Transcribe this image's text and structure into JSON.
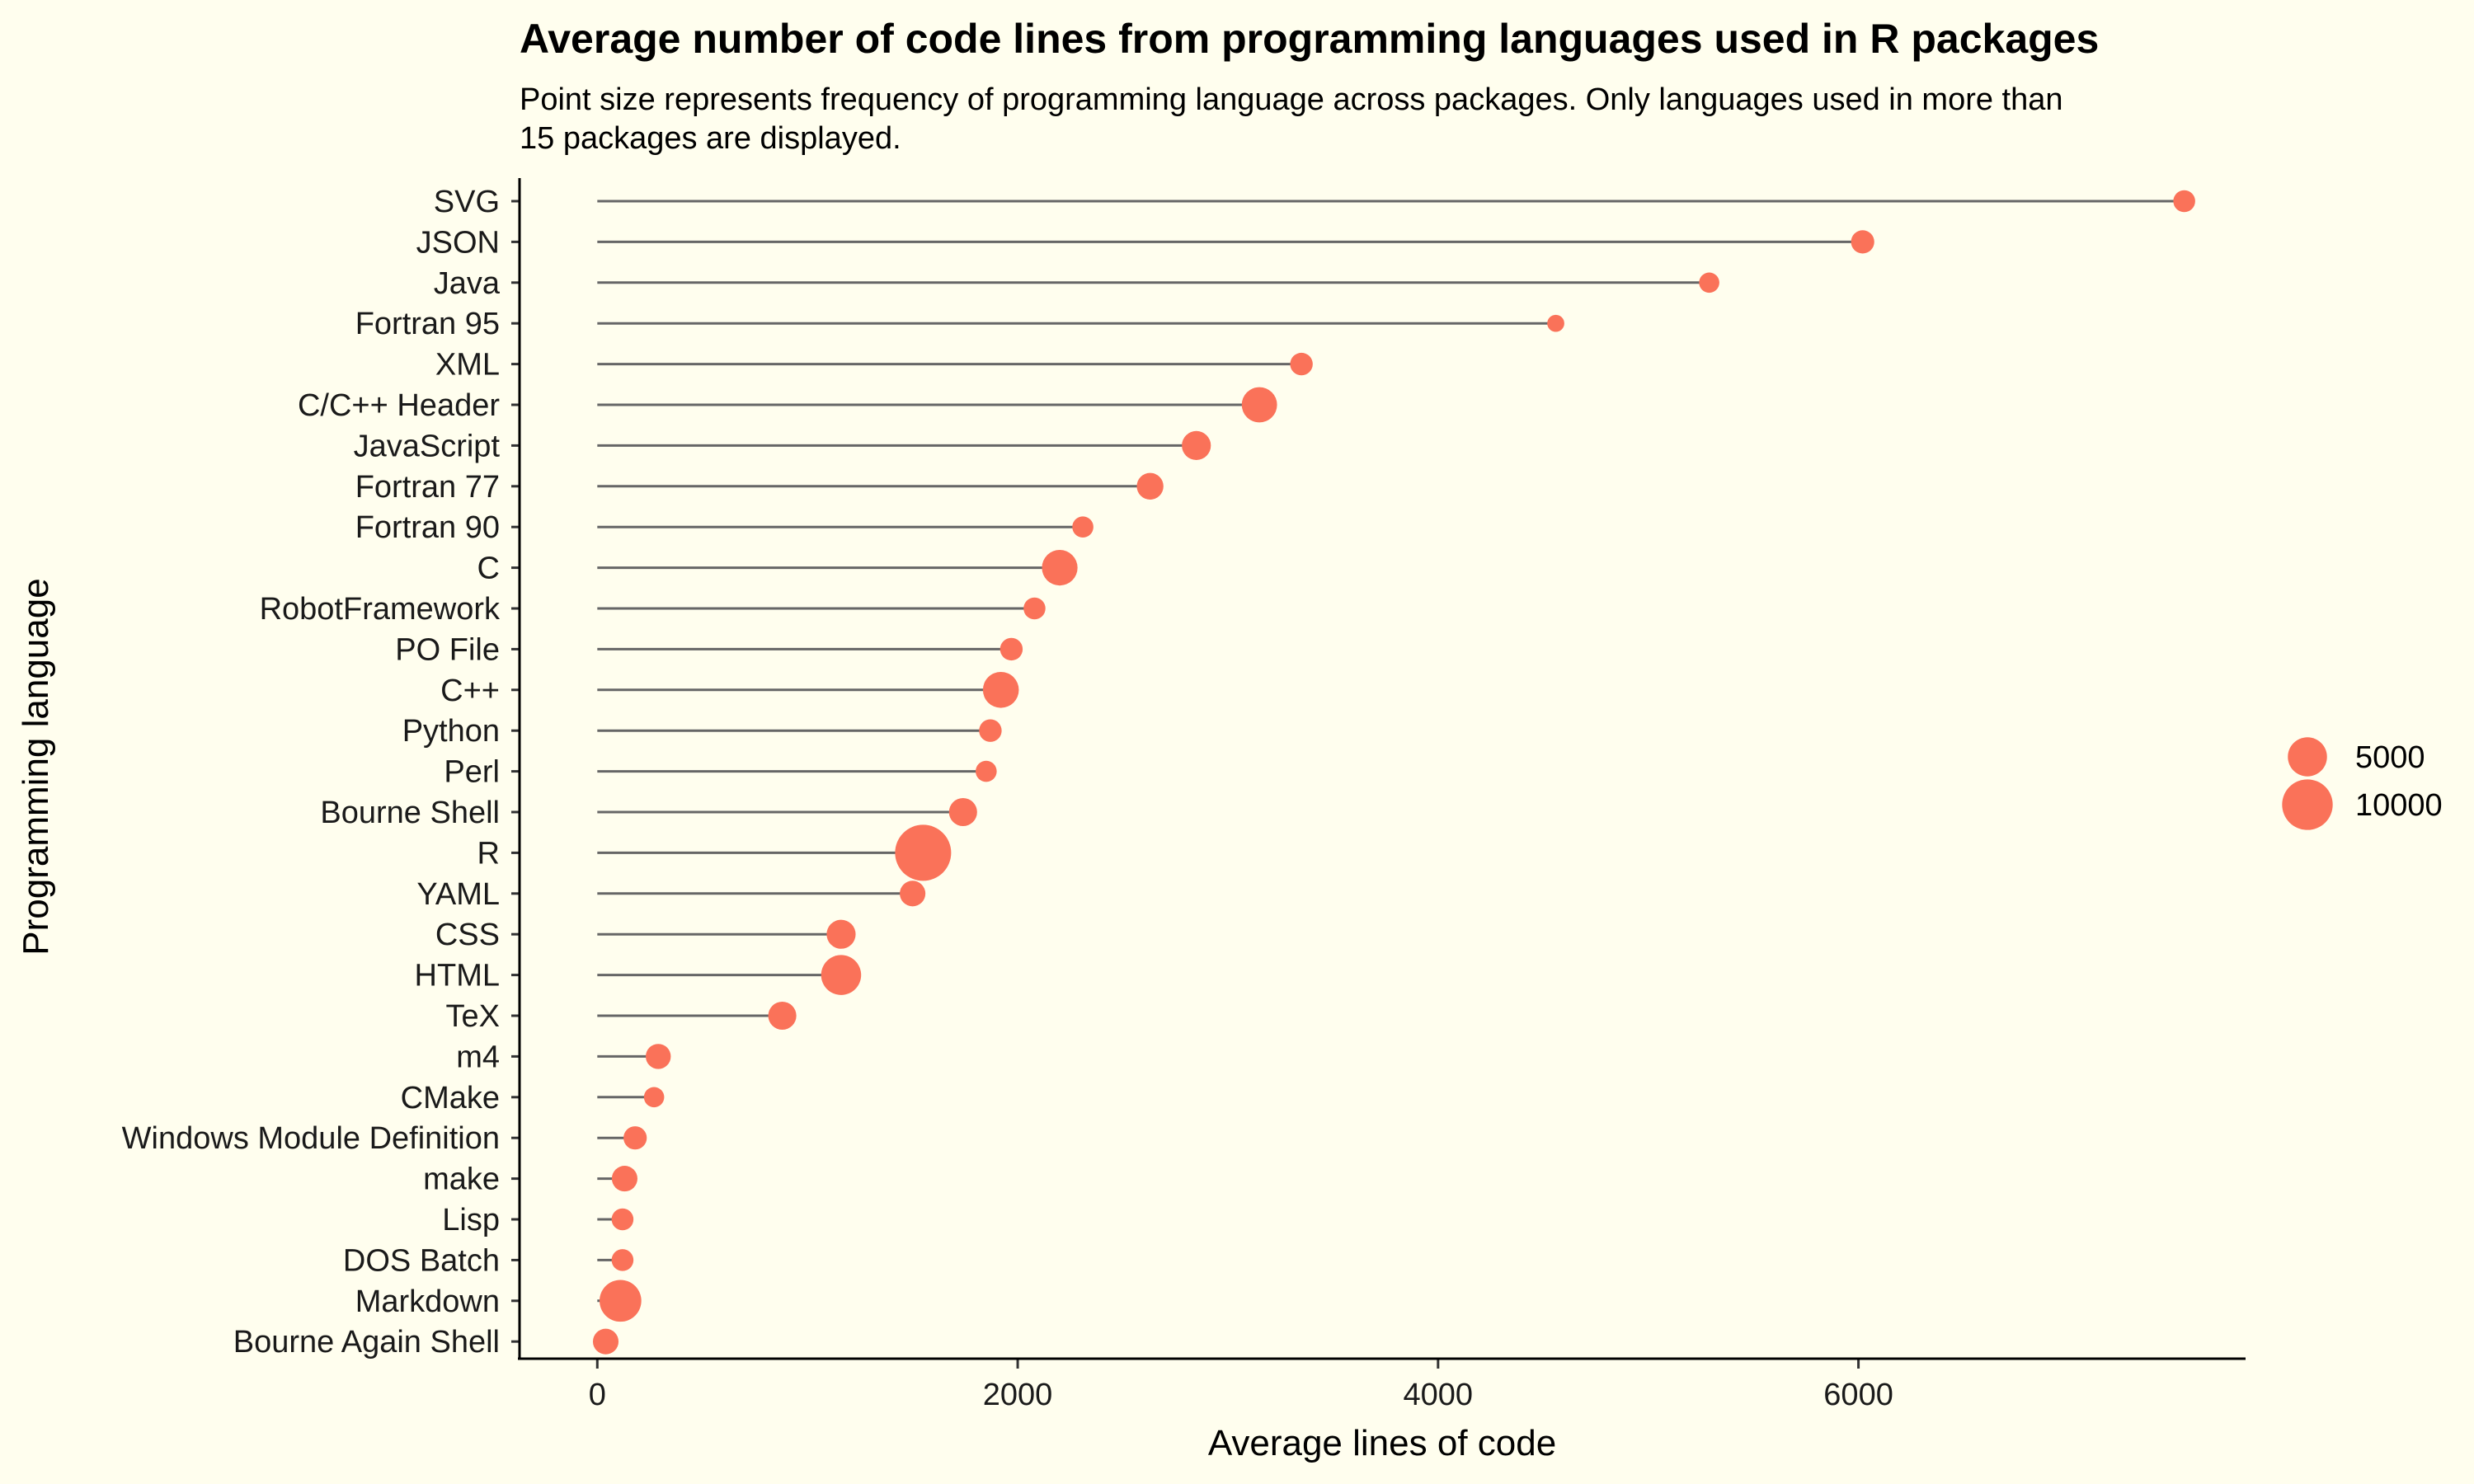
{
  "chart_data": {
    "type": "lollipop",
    "title": "Average number of code lines from programming languages used in R packages",
    "subtitle_lines": [
      "Point size represents frequency of programming language across packages. Only languages used in more than",
      "15 packages are displayed."
    ],
    "xlabel": "Average lines of code",
    "ylabel": "Programming language",
    "xlim": [
      -370,
      7830
    ],
    "x_ticks": [
      0,
      2000,
      4000,
      6000
    ],
    "grid": false,
    "legend_position": "right",
    "point_color": "#fa7259",
    "stem_color": "#666666",
    "legend": {
      "title": "",
      "entries": [
        {
          "label": "5000",
          "value": 5000
        },
        {
          "label": "10000",
          "value": 10000
        }
      ]
    },
    "points": [
      {
        "language": "SVG",
        "avg_lines": 7550,
        "packages": 700
      },
      {
        "language": "JSON",
        "avg_lines": 6020,
        "packages": 900
      },
      {
        "language": "Java",
        "avg_lines": 5290,
        "packages": 500
      },
      {
        "language": "Fortran 95",
        "avg_lines": 4560,
        "packages": 200
      },
      {
        "language": "XML",
        "avg_lines": 3350,
        "packages": 800
      },
      {
        "language": "C/C++ Header",
        "avg_lines": 3150,
        "packages": 3700
      },
      {
        "language": "JavaScript",
        "avg_lines": 2850,
        "packages": 2000
      },
      {
        "language": "Fortran 77",
        "avg_lines": 2630,
        "packages": 1500
      },
      {
        "language": "Fortran 90",
        "avg_lines": 2310,
        "packages": 600
      },
      {
        "language": "C",
        "avg_lines": 2200,
        "packages": 3800
      },
      {
        "language": "RobotFramework",
        "avg_lines": 2080,
        "packages": 700
      },
      {
        "language": "PO File",
        "avg_lines": 1970,
        "packages": 800
      },
      {
        "language": "C++",
        "avg_lines": 1920,
        "packages": 3900
      },
      {
        "language": "Python",
        "avg_lines": 1870,
        "packages": 800
      },
      {
        "language": "Perl",
        "avg_lines": 1850,
        "packages": 600
      },
      {
        "language": "Bourne Shell",
        "avg_lines": 1740,
        "packages": 1800
      },
      {
        "language": "R",
        "avg_lines": 1550,
        "packages": 13000
      },
      {
        "language": "YAML",
        "avg_lines": 1500,
        "packages": 1300
      },
      {
        "language": "CSS",
        "avg_lines": 1160,
        "packages": 2000
      },
      {
        "language": "HTML",
        "avg_lines": 1160,
        "packages": 5300
      },
      {
        "language": "TeX",
        "avg_lines": 880,
        "packages": 1800
      },
      {
        "language": "m4",
        "avg_lines": 290,
        "packages": 1200
      },
      {
        "language": "CMake",
        "avg_lines": 270,
        "packages": 500
      },
      {
        "language": "Windows Module Definition",
        "avg_lines": 180,
        "packages": 900
      },
      {
        "language": "make",
        "avg_lines": 130,
        "packages": 1300
      },
      {
        "language": "Lisp",
        "avg_lines": 120,
        "packages": 700
      },
      {
        "language": "DOS Batch",
        "avg_lines": 120,
        "packages": 700
      },
      {
        "language": "Markdown",
        "avg_lines": 110,
        "packages": 6000
      },
      {
        "language": "Bourne Again Shell",
        "avg_lines": 40,
        "packages": 1300
      }
    ]
  }
}
